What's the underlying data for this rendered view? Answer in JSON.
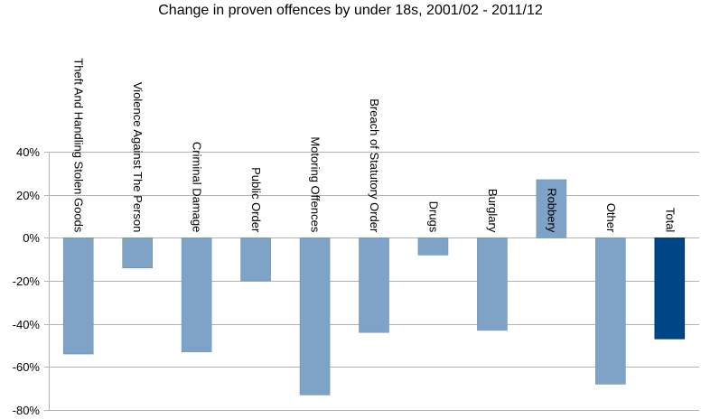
{
  "chart_data": {
    "type": "bar",
    "title": "Change in proven offences by under 18s, 2001/02 - 2011/12",
    "categories": [
      "Theft And Handling Stolen Goods",
      "Violence Against The Person",
      "Criminal Damage",
      "Public Order",
      "Motoring Offences",
      "Breach of Statutory Order",
      "Drugs",
      "Burglary",
      "Robbery",
      "Other",
      "Total"
    ],
    "values": [
      -54,
      -14,
      -53,
      -20,
      -73,
      -44,
      -8,
      -43,
      27,
      -68,
      -47
    ],
    "ylim": [
      -80,
      40
    ],
    "yticks": [
      40,
      20,
      0,
      -20,
      -40,
      -60,
      -80
    ],
    "ytick_labels": [
      "40%",
      "20%",
      "0%",
      "-20%",
      "-40%",
      "-60%",
      "-80%"
    ],
    "xlabel": "",
    "ylabel": "",
    "grid": true,
    "colors": {
      "bar": "#7fa3c7",
      "total_bar": "#004586",
      "grid": "#b3b3b3"
    }
  }
}
